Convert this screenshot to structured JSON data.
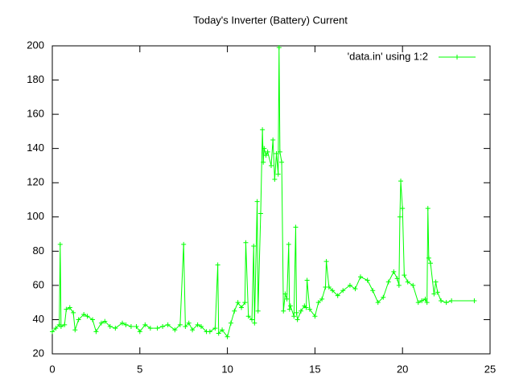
{
  "chart_data": {
    "type": "line",
    "title": "Today's Inverter (Battery) Current",
    "xlim": [
      0,
      25
    ],
    "xticks": [
      0,
      5,
      10,
      15,
      20,
      25
    ],
    "ylim": [
      20,
      200
    ],
    "yticks": [
      20,
      40,
      60,
      80,
      100,
      120,
      140,
      160,
      180,
      200
    ],
    "legend": "top-right",
    "series": [
      {
        "name": "'data.in' using 1:2",
        "color": "#00ff00",
        "x": [
          0,
          0.2,
          0.4,
          0.45,
          0.5,
          0.7,
          0.8,
          1.0,
          1.2,
          1.3,
          1.5,
          1.8,
          2.0,
          2.3,
          2.5,
          2.8,
          3.0,
          3.3,
          3.6,
          4.0,
          4.2,
          4.5,
          4.8,
          5.0,
          5.3,
          5.6,
          6.0,
          6.3,
          6.6,
          7.0,
          7.3,
          7.5,
          7.6,
          7.8,
          8.0,
          8.3,
          8.5,
          8.8,
          9.0,
          9.3,
          9.45,
          9.5,
          9.7,
          10.0,
          10.2,
          10.4,
          10.6,
          10.8,
          11.0,
          11.05,
          11.2,
          11.4,
          11.5,
          11.55,
          11.7,
          11.75,
          11.9,
          12.0,
          12.05,
          12.1,
          12.2,
          12.3,
          12.5,
          12.6,
          12.7,
          12.8,
          12.9,
          12.95,
          13.0,
          13.1,
          13.2,
          13.3,
          13.4,
          13.5,
          13.55,
          13.6,
          13.8,
          13.9,
          13.95,
          14.0,
          14.2,
          14.4,
          14.5,
          14.55,
          14.7,
          15.0,
          15.2,
          15.4,
          15.6,
          15.65,
          15.8,
          16.0,
          16.3,
          16.6,
          17.0,
          17.3,
          17.6,
          18.0,
          18.3,
          18.6,
          18.9,
          19.2,
          19.5,
          19.7,
          19.8,
          19.85,
          19.9,
          20.0,
          20.1,
          20.3,
          20.6,
          20.9,
          21.1,
          21.3,
          21.4,
          21.45,
          21.5,
          21.6,
          21.8,
          21.9,
          22.0,
          22.2,
          22.5,
          22.8,
          24.1
        ],
        "values": [
          33,
          35,
          37,
          84,
          36,
          37,
          46,
          47,
          44,
          34,
          40,
          43,
          42,
          40,
          33,
          38,
          39,
          36,
          35,
          38,
          37,
          36,
          36,
          33,
          37,
          35,
          35,
          36,
          37,
          34,
          37,
          84,
          36,
          38,
          34,
          37,
          36,
          33,
          33,
          35,
          72,
          32,
          34,
          30,
          38,
          45,
          50,
          47,
          50,
          85,
          42,
          40,
          83,
          38,
          109,
          45,
          102,
          151,
          132,
          140,
          136,
          138,
          130,
          145,
          122,
          137,
          125,
          199,
          138,
          132,
          45,
          55,
          52,
          84,
          46,
          48,
          42,
          94,
          44,
          40,
          45,
          48,
          47,
          63,
          46,
          42,
          50,
          52,
          59,
          74,
          59,
          57,
          54,
          57,
          60,
          58,
          65,
          63,
          57,
          50,
          53,
          62,
          68,
          64,
          60,
          100,
          121,
          105,
          66,
          62,
          60,
          50,
          51,
          52,
          50,
          105,
          76,
          73,
          55,
          62,
          56,
          51,
          50,
          51,
          51
        ]
      }
    ]
  }
}
